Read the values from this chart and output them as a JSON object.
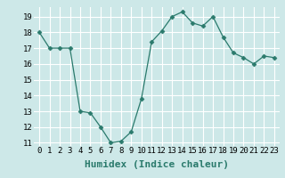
{
  "x": [
    0,
    1,
    2,
    3,
    4,
    5,
    6,
    7,
    8,
    9,
    10,
    11,
    12,
    13,
    14,
    15,
    16,
    17,
    18,
    19,
    20,
    21,
    22,
    23
  ],
  "y": [
    18,
    17,
    17,
    17,
    13,
    12.9,
    12,
    11,
    11.1,
    11.7,
    13.8,
    17.4,
    18.1,
    19.0,
    19.3,
    18.6,
    18.4,
    19.0,
    17.7,
    16.7,
    16.4,
    16.0,
    16.5,
    16.4
  ],
  "line_color": "#2a7a6c",
  "marker": "D",
  "marker_size": 2.5,
  "bg_color": "#cde8e8",
  "grid_color": "#ffffff",
  "xlabel": "Humidex (Indice chaleur)",
  "ylabel": "",
  "xlim": [
    -0.5,
    23.5
  ],
  "ylim": [
    10.8,
    19.6
  ],
  "yticks": [
    11,
    12,
    13,
    14,
    15,
    16,
    17,
    18,
    19
  ],
  "xticks": [
    0,
    1,
    2,
    3,
    4,
    5,
    6,
    7,
    8,
    9,
    10,
    11,
    12,
    13,
    14,
    15,
    16,
    17,
    18,
    19,
    20,
    21,
    22,
    23
  ],
  "xtick_labels": [
    "0",
    "1",
    "2",
    "3",
    "4",
    "5",
    "6",
    "7",
    "8",
    "9",
    "10",
    "11",
    "12",
    "13",
    "14",
    "15",
    "16",
    "17",
    "18",
    "19",
    "20",
    "21",
    "22",
    "23"
  ],
  "tick_fontsize": 6.5,
  "xlabel_fontsize": 8
}
